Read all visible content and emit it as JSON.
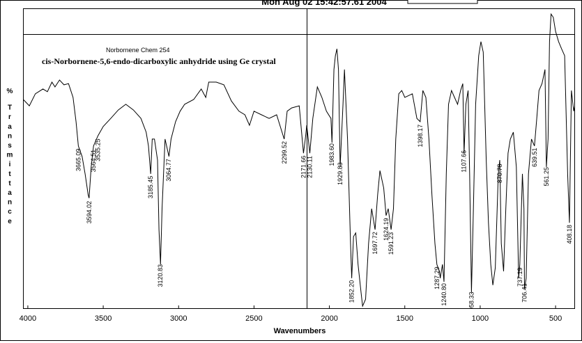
{
  "chart_data": {
    "type": "line",
    "title": "Mon Aug 02 15:42:57.61 2004",
    "subtitle": "Norbornene Chem 254",
    "annotation": "cis-Norbornene-5,6-endo-dicarboxylic anhydride using Ge crystal",
    "xlabel": "Wavenumbers",
    "ylabel": "% Transmittance",
    "color": "#000000",
    "xlim": [
      4032,
      371
    ],
    "ylim": [
      0,
      100
    ],
    "xticks": [
      4000,
      3500,
      3000,
      2500,
      2000,
      1500,
      1000,
      500
    ],
    "grid": false,
    "x": [
      4030,
      3990,
      3950,
      3900,
      3870,
      3840,
      3820,
      3790,
      3760,
      3730,
      3700,
      3680,
      3665,
      3640,
      3620,
      3600,
      3594,
      3580,
      3564,
      3535,
      3500,
      3450,
      3400,
      3350,
      3300,
      3250,
      3215,
      3200,
      3185,
      3175,
      3160,
      3140,
      3130,
      3120,
      3110,
      3090,
      3064,
      3050,
      3020,
      2990,
      2960,
      2900,
      2850,
      2820,
      2800,
      2750,
      2700,
      2650,
      2600,
      2560,
      2530,
      2500,
      2450,
      2400,
      2350,
      2300,
      2280,
      2250,
      2200,
      2172,
      2160,
      2150,
      2130,
      2110,
      2080,
      2050,
      2020,
      1990,
      1983,
      1970,
      1960,
      1950,
      1940,
      1929,
      1910,
      1900,
      1880,
      1860,
      1852,
      1840,
      1825,
      1810,
      1790,
      1780,
      1760,
      1740,
      1720,
      1697,
      1680,
      1665,
      1640,
      1624,
      1610,
      1591,
      1575,
      1560,
      1540,
      1520,
      1500,
      1480,
      1450,
      1420,
      1398,
      1380,
      1360,
      1340,
      1320,
      1300,
      1287,
      1270,
      1265,
      1250,
      1240,
      1225,
      1210,
      1190,
      1170,
      1150,
      1130,
      1115,
      1107,
      1095,
      1080,
      1070,
      1058,
      1045,
      1030,
      1010,
      995,
      980,
      960,
      945,
      930,
      916,
      900,
      880,
      870,
      860,
      845,
      830,
      815,
      800,
      780,
      760,
      745,
      737,
      720,
      710,
      706,
      695,
      680,
      660,
      640,
      625,
      610,
      590,
      570,
      561,
      550,
      540,
      530,
      515,
      500,
      480,
      460,
      440,
      420,
      408,
      395,
      380,
      371
    ],
    "values": [
      69.6,
      67.5,
      71.5,
      73.1,
      72.2,
      75.4,
      73.8,
      76.1,
      74.5,
      74.9,
      70.3,
      62.2,
      54.1,
      50.6,
      44.8,
      37.8,
      36.7,
      47.1,
      54.1,
      57.5,
      60.6,
      63.3,
      66.1,
      68.0,
      66.1,
      63.3,
      58.7,
      54.1,
      44.8,
      56.4,
      56.4,
      49.4,
      26.2,
      14.6,
      33.2,
      56.4,
      50.6,
      56.4,
      62.2,
      65.7,
      68.0,
      69.6,
      73.1,
      70.3,
      75.4,
      75.4,
      74.5,
      69.1,
      65.7,
      64.5,
      61.0,
      65.7,
      64.5,
      63.3,
      64.5,
      56.4,
      65.7,
      66.8,
      67.5,
      51.7,
      56.4,
      61.0,
      51.7,
      63.3,
      73.8,
      70.3,
      65.7,
      63.3,
      55.2,
      79.6,
      84.2,
      86.5,
      79.6,
      47.1,
      68.0,
      79.6,
      56.4,
      21.6,
      10.0,
      23.9,
      25.1,
      14.6,
      5.3,
      0.7,
      3.0,
      21.6,
      33.2,
      26.2,
      37.8,
      45.9,
      40.1,
      30.9,
      33.2,
      26.2,
      33.2,
      56.4,
      71.5,
      72.6,
      70.3,
      70.8,
      71.5,
      63.3,
      62.2,
      72.6,
      70.3,
      56.4,
      37.8,
      21.6,
      14.6,
      12.3,
      10.0,
      14.6,
      8.8,
      44.8,
      68.0,
      72.6,
      70.3,
      68.0,
      72.6,
      74.9,
      51.7,
      68.0,
      72.6,
      44.8,
      5.3,
      33.2,
      68.0,
      84.2,
      88.9,
      85.4,
      49.4,
      28.5,
      14.6,
      7.7,
      13.5,
      44.8,
      49.4,
      21.6,
      12.3,
      33.2,
      51.7,
      56.4,
      58.7,
      47.1,
      10.0,
      14.6,
      44.8,
      33.2,
      6.5,
      10.0,
      44.8,
      56.4,
      54.1,
      63.3,
      72.6,
      74.9,
      79.6,
      47.1,
      56.4,
      88.9,
      98.1,
      97.0,
      92.3,
      88.9,
      86.5,
      84.2,
      44.8,
      28.5,
      72.6,
      65.7,
      68.0
    ],
    "peaks": [
      {
        "value": 3665.09,
        "label": "3665.09"
      },
      {
        "value": 3594.02,
        "label": "3594.02"
      },
      {
        "value": 3564.51,
        "label": "3564.51"
      },
      {
        "value": 3535.25,
        "label": "3535.25"
      },
      {
        "value": 3185.45,
        "label": "3185.45"
      },
      {
        "value": 3120.83,
        "label": "3120.83"
      },
      {
        "value": 3064.77,
        "label": "3064.77"
      },
      {
        "value": 2299.52,
        "label": "2299.52"
      },
      {
        "value": 2171.66,
        "label": "2171.66"
      },
      {
        "value": 2130.11,
        "label": "2130.11"
      },
      {
        "value": 1983.6,
        "label": "1983.60"
      },
      {
        "value": 1929.83,
        "label": "1929.83"
      },
      {
        "value": 1852.2,
        "label": "1852.20"
      },
      {
        "value": 1697.72,
        "label": "1697.72"
      },
      {
        "value": 1624.19,
        "label": "1624.19"
      },
      {
        "value": 1591.23,
        "label": "1591.23"
      },
      {
        "value": 1398.17,
        "label": "1398.17"
      },
      {
        "value": 1287.29,
        "label": "1287.29"
      },
      {
        "value": 1240.8,
        "label": "1240.80"
      },
      {
        "value": 1107.66,
        "label": "1107.66"
      },
      {
        "value": 1058.33,
        "label": "1058.33"
      },
      {
        "value": 870.78,
        "label": "870.78"
      },
      {
        "value": 737.19,
        "label": "737.19"
      },
      {
        "value": 706.41,
        "label": "706.41"
      },
      {
        "value": 639.51,
        "label": "639.51"
      },
      {
        "value": 561.25,
        "label": "561.25"
      },
      {
        "value": 408.18,
        "label": "408.18"
      }
    ]
  }
}
